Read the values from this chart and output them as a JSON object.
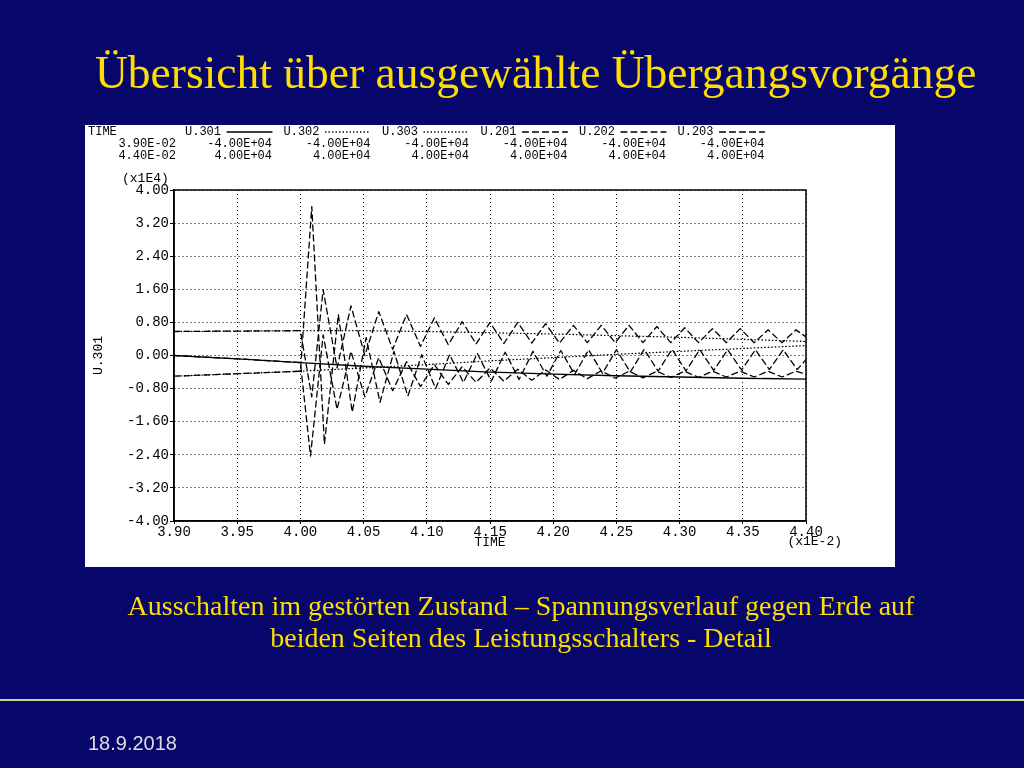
{
  "chart_data": {
    "type": "line",
    "title": "Übersicht über ausgewählte Übergangsvorgänge",
    "xlabel": "TIME",
    "ylabel": "U.301",
    "xlim": [
      3.9,
      4.4
    ],
    "xticks": [
      {
        "value": 3.9,
        "label": "3.90"
      },
      {
        "value": 3.95,
        "label": "3.95"
      },
      {
        "value": 4.0,
        "label": "4.00"
      },
      {
        "value": 4.05,
        "label": "4.05"
      },
      {
        "value": 4.1,
        "label": "4.10"
      },
      {
        "value": 4.15,
        "label": "4.15"
      },
      {
        "value": 4.2,
        "label": "4.20"
      },
      {
        "value": 4.25,
        "label": "4.25"
      },
      {
        "value": 4.3,
        "label": "4.30"
      },
      {
        "value": 4.35,
        "label": "4.35"
      },
      {
        "value": 4.4,
        "label": "4.40"
      }
    ],
    "ylim": [
      -4,
      4
    ],
    "yticks": [
      {
        "value": -4,
        "label": "-4.00"
      },
      {
        "value": -3.2,
        "label": "-3.20"
      },
      {
        "value": -2.4,
        "label": "-2.40"
      },
      {
        "value": -1.6,
        "label": "-1.60"
      },
      {
        "value": -0.8,
        "label": "-0.80"
      },
      {
        "value": 0,
        "label": "0.00"
      },
      {
        "value": 0.8,
        "label": "0.80"
      },
      {
        "value": 1.6,
        "label": "1.60"
      },
      {
        "value": 2.4,
        "label": "2.40"
      },
      {
        "value": 3.2,
        "label": "3.20"
      },
      {
        "value": 4,
        "label": "4.00"
      }
    ],
    "grid": true,
    "legend": "top",
    "series": [
      {
        "name": "U.301",
        "color": "#000000",
        "line_style": "solid",
        "x": [
          3.9,
          3.95,
          4.0,
          4.05,
          4.1,
          4.15,
          4.2,
          4.25,
          4.3,
          4.35,
          4.4
        ],
        "values": [
          0,
          -0.08,
          -0.17,
          -0.26,
          -0.33,
          -0.4,
          -0.45,
          -0.49,
          -0.52,
          -0.55,
          -0.57
        ]
      },
      {
        "name": "U.302",
        "color": "#000000",
        "line_style": "dotted",
        "x": [
          3.9,
          3.95,
          4.0,
          4.05,
          4.1,
          4.15,
          4.2,
          4.25,
          4.3,
          4.35,
          4.4
        ],
        "values": [
          0.58,
          0.59,
          0.6,
          0.6,
          0.58,
          0.55,
          0.52,
          0.48,
          0.44,
          0.39,
          0.34
        ]
      },
      {
        "name": "U.303",
        "color": "#000000",
        "line_style": "dotted",
        "x": [
          3.9,
          3.95,
          4.0,
          4.05,
          4.1,
          4.15,
          4.2,
          4.25,
          4.3,
          4.35,
          4.4
        ],
        "values": [
          -0.5,
          -0.44,
          -0.38,
          -0.3,
          -0.22,
          -0.13,
          -0.05,
          0.03,
          0.1,
          0.17,
          0.24
        ]
      },
      {
        "name": "U.201",
        "color": "#000000",
        "line_style": "dashed",
        "x": [
          3.9,
          3.95,
          4.0,
          4.008,
          4.018,
          4.029,
          4.04,
          4.051,
          4.062,
          4.073,
          4.084,
          4.095,
          4.106,
          4.117,
          4.128,
          4.139,
          4.15,
          4.161,
          4.172,
          4.183,
          4.194,
          4.205,
          4.216,
          4.227,
          4.238,
          4.249,
          4.26,
          4.271,
          4.282,
          4.293,
          4.304,
          4.315,
          4.326,
          4.337,
          4.348,
          4.359,
          4.37,
          4.381,
          4.392,
          4.4
        ],
        "values": [
          0,
          -0.08,
          -0.17,
          -2.43,
          0.5,
          -1.3,
          0.1,
          -1.0,
          -0.05,
          -0.85,
          -0.15,
          -0.75,
          -0.22,
          -0.7,
          -0.27,
          -0.65,
          -0.3,
          -0.62,
          -0.33,
          -0.6,
          -0.35,
          -0.58,
          -0.36,
          -0.56,
          -0.37,
          -0.55,
          -0.38,
          -0.54,
          -0.38,
          -0.53,
          -0.38,
          -0.53,
          -0.38,
          -0.52,
          -0.38,
          -0.52,
          -0.38,
          -0.52,
          -0.38,
          -0.45
        ]
      },
      {
        "name": "U.202",
        "color": "#000000",
        "line_style": "dashed",
        "x": [
          3.9,
          3.95,
          4.0,
          4.009,
          4.018,
          4.029,
          4.04,
          4.051,
          4.062,
          4.073,
          4.084,
          4.095,
          4.106,
          4.117,
          4.128,
          4.139,
          4.15,
          4.161,
          4.172,
          4.183,
          4.194,
          4.205,
          4.216,
          4.227,
          4.238,
          4.249,
          4.26,
          4.271,
          4.282,
          4.293,
          4.304,
          4.315,
          4.326,
          4.337,
          4.348,
          4.359,
          4.37,
          4.381,
          4.392,
          4.4
        ],
        "values": [
          0.58,
          0.59,
          0.6,
          -1.0,
          1.59,
          -0.3,
          1.2,
          0.0,
          1.06,
          0.15,
          0.99,
          0.22,
          0.91,
          0.26,
          0.82,
          0.28,
          0.8,
          0.29,
          0.8,
          0.3,
          0.77,
          0.3,
          0.73,
          0.31,
          0.73,
          0.31,
          0.73,
          0.31,
          0.7,
          0.31,
          0.67,
          0.31,
          0.65,
          0.31,
          0.65,
          0.31,
          0.62,
          0.31,
          0.62,
          0.45
        ]
      },
      {
        "name": "U.203",
        "color": "#000000",
        "line_style": "dashed",
        "x": [
          3.9,
          3.95,
          4.0,
          4.009,
          4.019,
          4.03,
          4.041,
          4.052,
          4.063,
          4.074,
          4.085,
          4.096,
          4.107,
          4.118,
          4.129,
          4.14,
          4.151,
          4.162,
          4.173,
          4.184,
          4.195,
          4.206,
          4.217,
          4.228,
          4.239,
          4.25,
          4.261,
          4.272,
          4.283,
          4.294,
          4.305,
          4.316,
          4.327,
          4.338,
          4.349,
          4.36,
          4.371,
          4.382,
          4.393,
          4.4
        ],
        "values": [
          -0.5,
          -0.44,
          -0.38,
          3.6,
          -2.14,
          0.99,
          -1.37,
          0.43,
          -1.13,
          0.1,
          -0.98,
          0.02,
          -0.8,
          0.02,
          -0.65,
          0.05,
          -0.62,
          0.08,
          -0.58,
          0.1,
          -0.5,
          0.12,
          -0.46,
          0.14,
          -0.43,
          0.14,
          -0.4,
          0.15,
          -0.38,
          0.15,
          -0.37,
          0.14,
          -0.36,
          0.14,
          -0.35,
          0.14,
          -0.34,
          0.14,
          -0.34,
          -0.1
        ]
      }
    ],
    "annotations": [
      "TIME",
      "3.90E-02",
      "4.40E-02",
      "-4.00E+04",
      "4.00E+04",
      "-4.00E+04",
      "4.00E+04",
      "-4.00E+04",
      "4.00E+04",
      "-4.00E+04",
      "4.00E+04",
      "-4.00E+04",
      "4.00E+04",
      "-4.00E+04",
      "4.00E+04",
      "(x1E4)",
      "(x1E-2)",
      "Ausschalten im gestörten Zustand – Spannungsverlauf gegen Erde auf beiden Seiten des Leistungsschalters - Detail",
      "18.9.2018"
    ]
  }
}
